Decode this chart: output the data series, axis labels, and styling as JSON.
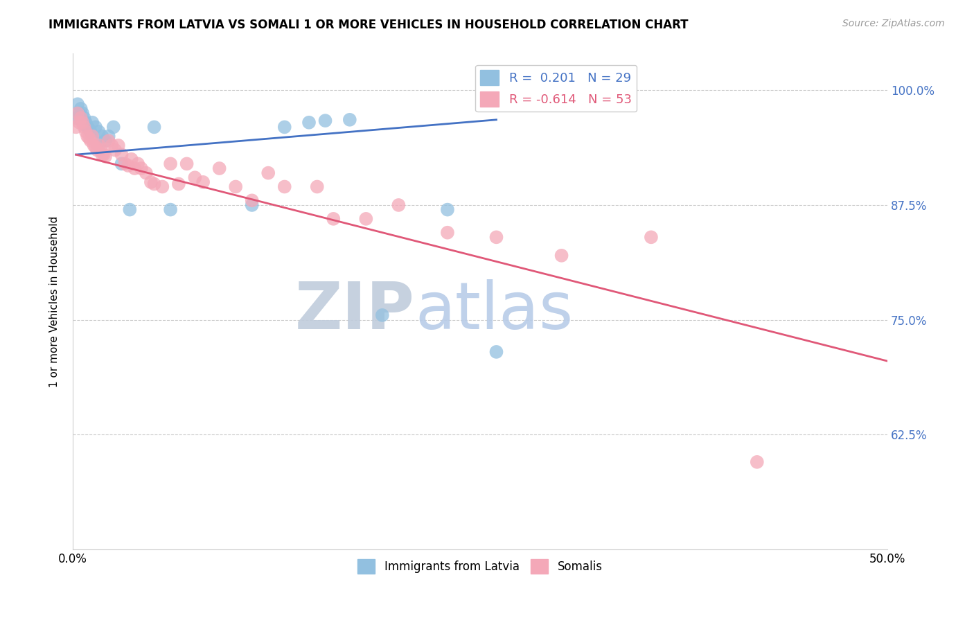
{
  "title": "IMMIGRANTS FROM LATVIA VS SOMALI 1 OR MORE VEHICLES IN HOUSEHOLD CORRELATION CHART",
  "source": "Source: ZipAtlas.com",
  "ylabel": "1 or more Vehicles in Household",
  "xlim": [
    0.0,
    0.5
  ],
  "ylim": [
    0.5,
    1.04
  ],
  "blue_color": "#92C0E0",
  "pink_color": "#F4A8B8",
  "blue_line_color": "#4472C4",
  "pink_line_color": "#E05878",
  "watermark_zip": "ZIP",
  "watermark_atlas": "atlas",
  "watermark_color_zip": "#C8D8EC",
  "watermark_color_atlas": "#B8D0F0",
  "latvian_x": [
    0.002,
    0.003,
    0.004,
    0.005,
    0.006,
    0.007,
    0.008,
    0.009,
    0.01,
    0.011,
    0.012,
    0.014,
    0.016,
    0.018,
    0.02,
    0.022,
    0.025,
    0.03,
    0.035,
    0.05,
    0.06,
    0.11,
    0.13,
    0.145,
    0.155,
    0.17,
    0.19,
    0.23,
    0.26
  ],
  "latvian_y": [
    0.97,
    0.985,
    0.975,
    0.98,
    0.975,
    0.97,
    0.965,
    0.96,
    0.958,
    0.955,
    0.965,
    0.96,
    0.955,
    0.95,
    0.945,
    0.95,
    0.96,
    0.92,
    0.87,
    0.96,
    0.87,
    0.875,
    0.96,
    0.965,
    0.967,
    0.968,
    0.755,
    0.87,
    0.715
  ],
  "somali_x": [
    0.002,
    0.003,
    0.004,
    0.005,
    0.006,
    0.007,
    0.008,
    0.009,
    0.01,
    0.011,
    0.012,
    0.013,
    0.014,
    0.015,
    0.016,
    0.017,
    0.018,
    0.019,
    0.02,
    0.022,
    0.024,
    0.026,
    0.028,
    0.03,
    0.032,
    0.034,
    0.036,
    0.038,
    0.04,
    0.042,
    0.045,
    0.048,
    0.05,
    0.055,
    0.06,
    0.065,
    0.07,
    0.075,
    0.08,
    0.09,
    0.1,
    0.11,
    0.12,
    0.13,
    0.15,
    0.16,
    0.18,
    0.2,
    0.23,
    0.26,
    0.3,
    0.355,
    0.42
  ],
  "somali_y": [
    0.96,
    0.975,
    0.965,
    0.97,
    0.965,
    0.96,
    0.955,
    0.95,
    0.948,
    0.945,
    0.95,
    0.94,
    0.938,
    0.935,
    0.94,
    0.935,
    0.93,
    0.93,
    0.928,
    0.945,
    0.94,
    0.935,
    0.94,
    0.93,
    0.92,
    0.918,
    0.925,
    0.915,
    0.92,
    0.915,
    0.91,
    0.9,
    0.898,
    0.895,
    0.92,
    0.898,
    0.92,
    0.905,
    0.9,
    0.915,
    0.895,
    0.88,
    0.91,
    0.895,
    0.895,
    0.86,
    0.86,
    0.875,
    0.845,
    0.84,
    0.82,
    0.84,
    0.595
  ],
  "blue_line_x0": 0.002,
  "blue_line_x1": 0.26,
  "blue_line_y0": 0.93,
  "blue_line_y1": 0.968,
  "pink_line_x0": 0.002,
  "pink_line_x1": 0.5,
  "pink_line_y0": 0.93,
  "pink_line_y1": 0.705,
  "y_tick_positions": [
    0.625,
    0.75,
    0.875,
    1.0
  ],
  "y_tick_labels": [
    "62.5%",
    "75.0%",
    "87.5%",
    "100.0%"
  ],
  "x_tick_positions": [
    0.0,
    0.1,
    0.2,
    0.3,
    0.4,
    0.5
  ],
  "x_tick_labels": [
    "0.0%",
    "",
    "",
    "",
    "",
    "50.0%"
  ],
  "legend_label_blue": "R =  0.201   N = 29",
  "legend_label_pink": "R = -0.614   N = 53",
  "bottom_legend_blue": "Immigrants from Latvia",
  "bottom_legend_pink": "Somalis"
}
